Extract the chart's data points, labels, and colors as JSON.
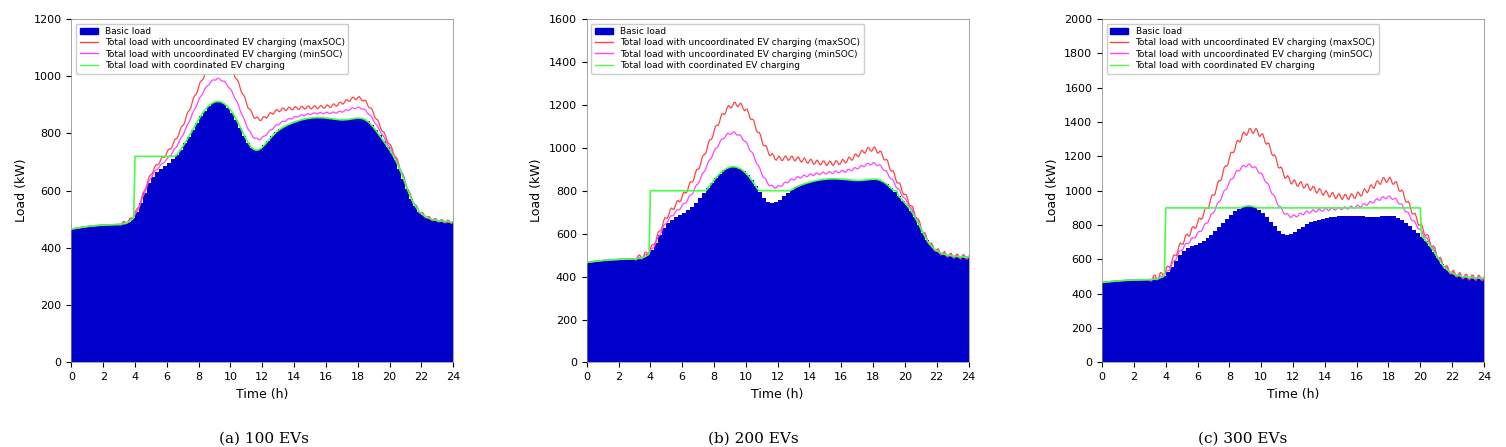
{
  "subplots": [
    {
      "title": "(a) 100 EVs",
      "ylim": [
        0,
        1200
      ],
      "yticks": [
        0,
        200,
        400,
        600,
        800,
        1000,
        1200
      ],
      "ylabel": "Load (kW)",
      "coordinated_flat": 720,
      "coordinated_start": 4.0,
      "coordinated_end": 19.5,
      "ev_max_scale": 230,
      "ev_min_scale": 160
    },
    {
      "title": "(b) 200 EVs",
      "ylim": [
        0,
        1600
      ],
      "yticks": [
        0,
        200,
        400,
        600,
        800,
        1000,
        1200,
        1400,
        1600
      ],
      "ylabel": "Load (kW)",
      "coordinated_flat": 800,
      "coordinated_start": 4.0,
      "coordinated_end": 19.5,
      "ev_max_scale": 460,
      "ev_min_scale": 320
    },
    {
      "title": "(c) 300 EVs",
      "ylim": [
        0,
        2000
      ],
      "yticks": [
        0,
        200,
        400,
        600,
        800,
        1000,
        1200,
        1400,
        1600,
        1800,
        2000
      ],
      "ylabel": "Load (kW)",
      "coordinated_flat": 900,
      "coordinated_start": 4.0,
      "coordinated_end": 20.0,
      "ev_max_scale": 690,
      "ev_min_scale": 480
    }
  ],
  "xlabel": "Time (h)",
  "xticks": [
    0,
    2,
    4,
    6,
    8,
    10,
    12,
    14,
    16,
    18,
    20,
    22,
    24
  ],
  "bar_color": "#0000CC",
  "maxSOC_color": "#FF4444",
  "minSOC_color": "#FF44FF",
  "coordinated_color": "#44FF44",
  "legend_labels": [
    "Basic load",
    "Total load with uncoordinated EV charging (maxSOC)",
    "Total load with uncoordinated EV charging (minSOC)",
    "Total load with coordinated EV charging"
  ],
  "figsize": [
    15.06,
    4.47
  ],
  "dpi": 100
}
